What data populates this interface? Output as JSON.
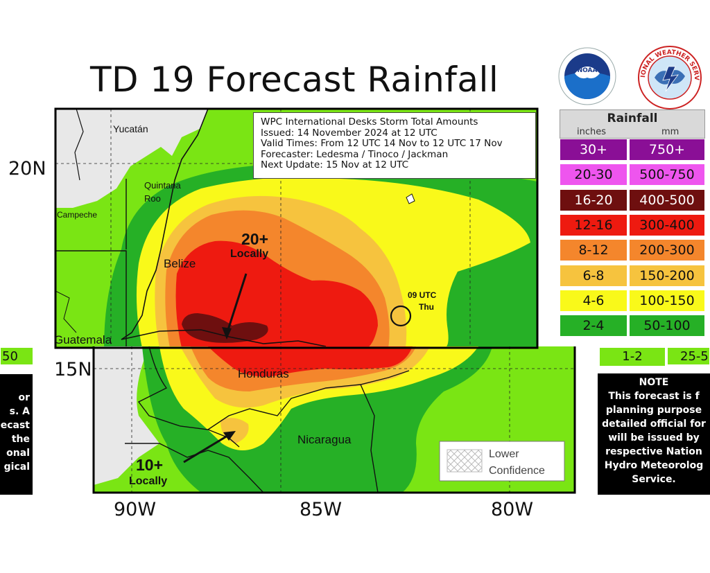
{
  "title": "TD 19 Forecast Rainfall",
  "info_box": {
    "line1": "WPC International Desks Storm Total Amounts",
    "line2": "Issued:  14 November 2024 at 12 UTC",
    "line3": "Valid Times:  From 12 UTC 14 Nov  to  12 UTC 17 Nov",
    "line4": "Forecaster:  Ledesma / Tinoco / Jackman",
    "line5": "Next Update: 15 Nov at 12 UTC"
  },
  "legend": {
    "title": "Rainfall",
    "unit_inches": "inches",
    "unit_mm": "mm",
    "rows": [
      {
        "inches": "30+",
        "mm": "750+",
        "color": "#8a0f96",
        "text": "#ffffff"
      },
      {
        "inches": "20-30",
        "mm": "500-750",
        "color": "#ee55ee",
        "text": "#111111"
      },
      {
        "inches": "16-20",
        "mm": "400-500",
        "color": "#6e0f0f",
        "text": "#ffffff"
      },
      {
        "inches": "12-16",
        "mm": "300-400",
        "color": "#ee1a10",
        "text": "#111111"
      },
      {
        "inches": "8-12",
        "mm": "200-300",
        "color": "#f4862c",
        "text": "#111111"
      },
      {
        "inches": "6-8",
        "mm": "150-200",
        "color": "#f6c33e",
        "text": "#111111"
      },
      {
        "inches": "4-6",
        "mm": "100-150",
        "color": "#f9f91a",
        "text": "#111111"
      },
      {
        "inches": "2-4",
        "mm": "50-100",
        "color": "#26b026",
        "text": "#111111"
      }
    ],
    "partial": {
      "inches": "1-2",
      "mm": "25-5"
    }
  },
  "left_stub": "50",
  "map_labels": {
    "yucatan": "Yucatán",
    "quintana1": "Quintana",
    "quintana2": "Roo",
    "campeche": "Campeche",
    "belize": "Belize",
    "guatemala": "Guatemala",
    "honduras": "Honduras",
    "nicaragua": "Nicaragua",
    "locally20_val": "20+",
    "locally20_txt": "Locally",
    "locally10_val": "10+",
    "locally10_txt": "Locally",
    "utc1": "09 UTC",
    "utc2": "Thu",
    "lower1": "Lower",
    "lower2": "Confidence"
  },
  "axes": {
    "lat_20": "20N",
    "lat_15": "15N",
    "lon_90": "90W",
    "lon_85": "85W",
    "lon_80": "80W"
  },
  "note_right": {
    "heading": "NOTE",
    "l1": "This forecast is f",
    "l2": "planning purpose",
    "l3": "detailed official for",
    "l4": "will be issued by",
    "l5": "respective Nation",
    "l6": "Hydro Meteorolog",
    "l7": "Service."
  },
  "note_left": {
    "l1": "or",
    "l2": "s. A",
    "l3": "ecast",
    "l4": "the",
    "l5": "onal",
    "l6": "gical"
  },
  "logos": {
    "noaa": "NOAA",
    "nws": "NATIONAL WEATHER SERVICE"
  }
}
